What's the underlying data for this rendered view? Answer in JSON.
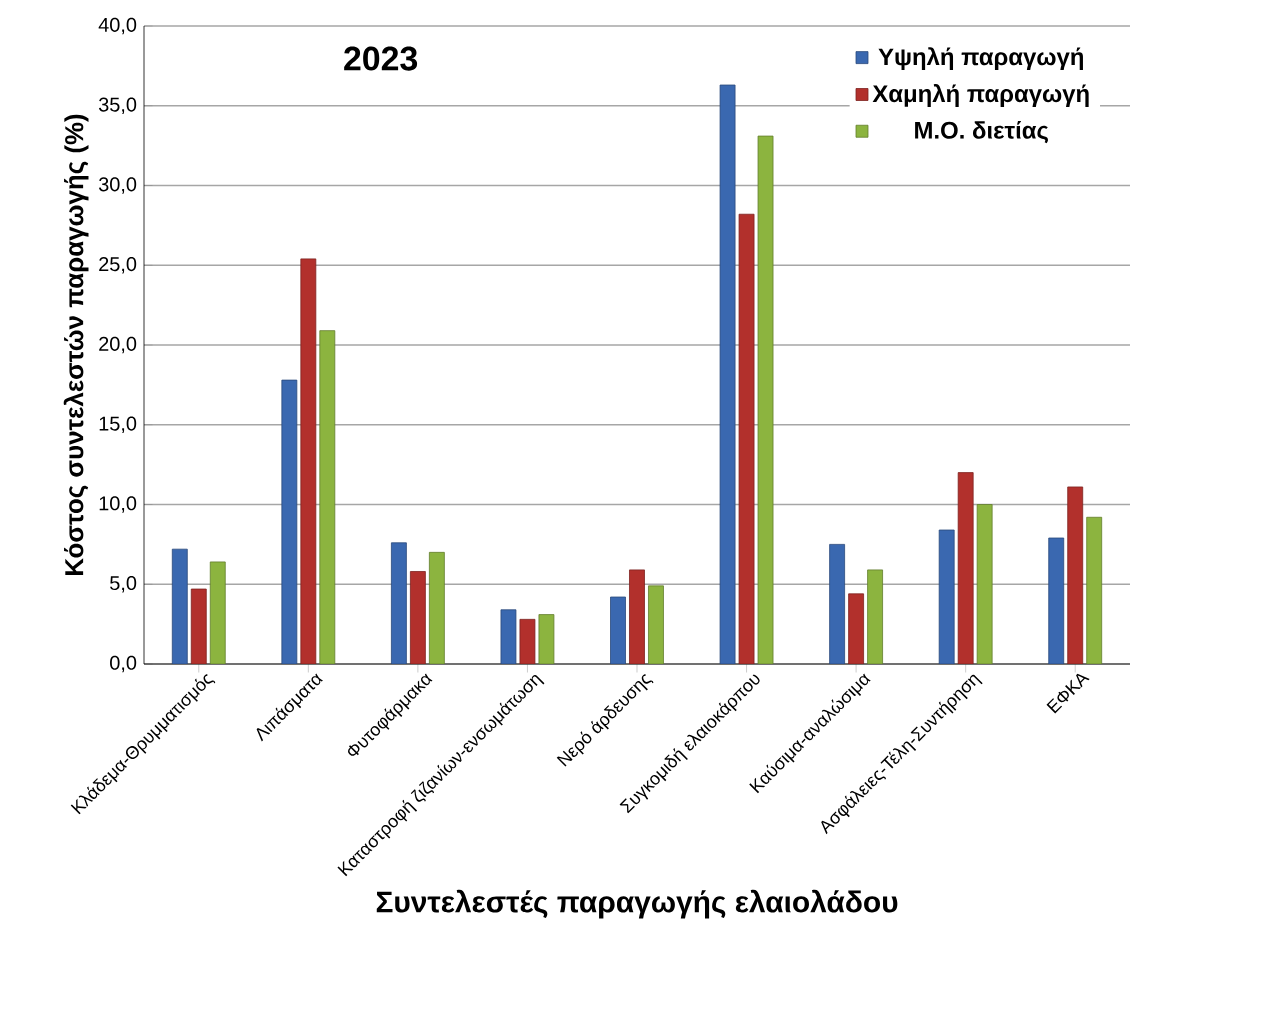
{
  "chart_data": {
    "type": "bar",
    "title": "2023",
    "xlabel": "Συντελεστές παραγωγής ελαιολάδου",
    "ylabel": "Κόστος συντελεστών παραγωγής (%)",
    "categories": [
      "Κλάδεμα-Θρυμματισμός",
      "Λιπάσματα",
      "Φυτοφάρμακα",
      "Καταστροφή ζιζανίων-ενσωμάτωση",
      "Νερό άρδευσης",
      "Συγκομιδή ελαιοκάρπου",
      "Καύσιμα-αναλώσιμα",
      "Ασφάλειες-Τέλη-Συντήρηση",
      "ΕΦΚΑ"
    ],
    "series": [
      {
        "name": "Υψηλή παραγωγή",
        "color": "#3a68b0",
        "values": [
          7.2,
          17.8,
          7.6,
          3.4,
          4.2,
          36.3,
          7.5,
          8.4,
          7.9
        ]
      },
      {
        "name": "Χαμηλή παραγωγή",
        "color": "#b2302c",
        "values": [
          4.7,
          25.4,
          5.8,
          2.8,
          5.9,
          28.2,
          4.4,
          12.0,
          11.1
        ]
      },
      {
        "name": "Μ.Ο. διετίας",
        "color": "#8cb43f",
        "values": [
          6.4,
          20.9,
          7.0,
          3.1,
          4.9,
          33.1,
          5.9,
          10.0,
          9.2
        ]
      }
    ],
    "ylim": [
      0,
      40
    ],
    "yticks": [
      {
        "value": 0,
        "label": "0,0"
      },
      {
        "value": 5,
        "label": "5,0"
      },
      {
        "value": 10,
        "label": "10,0"
      },
      {
        "value": 15,
        "label": "15,0"
      },
      {
        "value": 20,
        "label": "20,0"
      },
      {
        "value": 25,
        "label": "25,0"
      },
      {
        "value": 30,
        "label": "30,0"
      },
      {
        "value": 35,
        "label": "35,0"
      },
      {
        "value": 40,
        "label": "40,0"
      }
    ],
    "grid": "y",
    "legend": "top right"
  }
}
